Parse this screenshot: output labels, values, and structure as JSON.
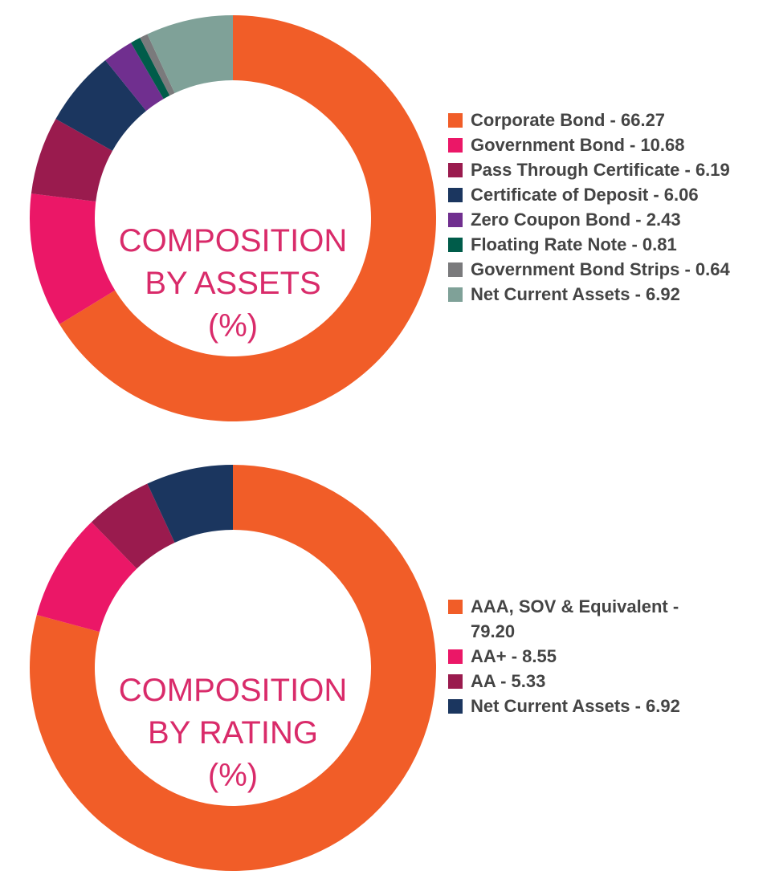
{
  "chart_data": [
    {
      "type": "pie",
      "donut": true,
      "title": "COMPOSITION BY ASSETS (%)",
      "title_lines": [
        "COMPOSITION",
        "BY ASSETS",
        "(%)"
      ],
      "legend_position": "right",
      "categories": [
        "Corporate Bond",
        "Government Bond",
        "Pass Through Certificate",
        "Certificate of Deposit",
        "Zero Coupon Bond",
        "Floating Rate Note",
        "Government Bond Strips",
        "Net Current Assets"
      ],
      "values": [
        66.27,
        10.68,
        6.19,
        6.06,
        2.43,
        0.81,
        0.64,
        6.92
      ],
      "labels": [
        "Corporate Bond - 66.27",
        "Government Bond - 10.68",
        "Pass Through Certificate - 6.19",
        "Certificate of Deposit - 6.06",
        "Zero Coupon Bond - 2.43",
        "Floating Rate Note - 0.81",
        "Government Bond Strips - 0.64",
        "Net Current Assets - 6.92"
      ],
      "colors": [
        "#F15D28",
        "#EB1767",
        "#9A1B4E",
        "#1B365F",
        "#702F8F",
        "#005C4A",
        "#7A7A7C",
        "#7FA198"
      ]
    },
    {
      "type": "pie",
      "donut": true,
      "title": "COMPOSITION BY RATING (%)",
      "title_lines": [
        "COMPOSITION",
        "BY RATING",
        "(%)"
      ],
      "legend_position": "right",
      "categories": [
        "AAA, SOV & Equivalent",
        "AA+",
        "AA",
        "Net Current Assets"
      ],
      "values": [
        79.2,
        8.55,
        5.33,
        6.92
      ],
      "labels": [
        "AAA, SOV & Equivalent - 79.20",
        "AA+ - 8.55",
        "AA - 5.33",
        "Net Current Assets - 6.92"
      ],
      "colors": [
        "#F15D28",
        "#EB1767",
        "#9A1B4E",
        "#1B365F"
      ]
    }
  ]
}
